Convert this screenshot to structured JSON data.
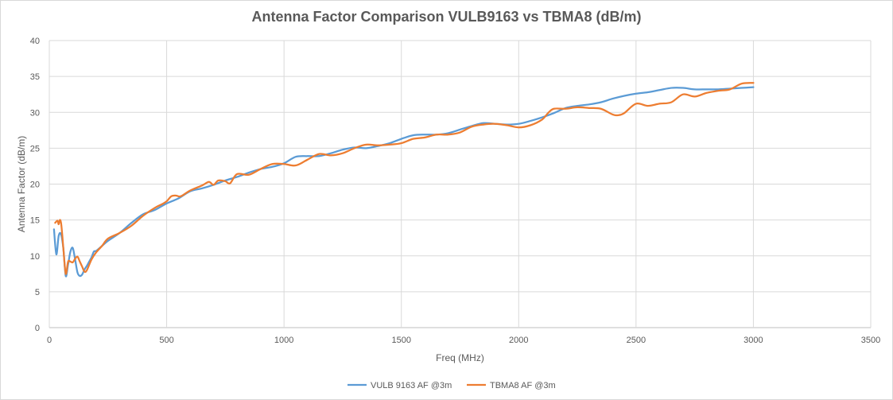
{
  "chart_data": {
    "type": "line",
    "title": "Antenna Factor Comparison VULB9163 vs TBMA8 (dB/m)",
    "xlabel": "Freq (MHz)",
    "ylabel": "Antenna Factor (dB/m)",
    "xlim": [
      0,
      3500
    ],
    "ylim": [
      0,
      40
    ],
    "xticks": [
      0,
      500,
      1000,
      1500,
      2000,
      2500,
      3000,
      3500
    ],
    "yticks": [
      0,
      5,
      10,
      15,
      20,
      25,
      30,
      35,
      40
    ],
    "grid": true,
    "legend_position": "bottom",
    "series": [
      {
        "name": "VULB 9163 AF @3m",
        "color": "#5b9bd5",
        "x": [
          20,
          30,
          40,
          50,
          60,
          70,
          80,
          90,
          100,
          110,
          120,
          130,
          140,
          150,
          160,
          170,
          180,
          190,
          200,
          225,
          250,
          300,
          350,
          400,
          450,
          500,
          550,
          600,
          650,
          700,
          750,
          800,
          850,
          900,
          950,
          1000,
          1050,
          1100,
          1150,
          1200,
          1250,
          1300,
          1350,
          1400,
          1450,
          1500,
          1550,
          1600,
          1650,
          1700,
          1750,
          1800,
          1850,
          1900,
          1950,
          2000,
          2050,
          2100,
          2150,
          2200,
          2250,
          2300,
          2350,
          2400,
          2450,
          2500,
          2550,
          2600,
          2650,
          2700,
          2750,
          2800,
          2850,
          2900,
          2950,
          3000
        ],
        "y": [
          13.7,
          10.2,
          12.8,
          13.0,
          11.0,
          7.2,
          8.8,
          10.6,
          11.1,
          9.5,
          7.7,
          7.2,
          7.4,
          8.1,
          8.6,
          9.2,
          9.8,
          10.6,
          10.7,
          11.4,
          12.1,
          13.2,
          14.6,
          15.8,
          16.4,
          17.3,
          18.0,
          19.0,
          19.4,
          19.9,
          20.5,
          21.0,
          21.6,
          22.1,
          22.4,
          22.9,
          23.8,
          23.9,
          23.9,
          24.3,
          24.8,
          25.1,
          25.0,
          25.3,
          25.7,
          26.3,
          26.8,
          26.9,
          26.9,
          27.1,
          27.6,
          28.1,
          28.5,
          28.4,
          28.3,
          28.4,
          28.8,
          29.3,
          29.9,
          30.6,
          30.9,
          31.1,
          31.4,
          31.9,
          32.3,
          32.6,
          32.8,
          33.1,
          33.4,
          33.4,
          33.2,
          33.2,
          33.2,
          33.3,
          33.4,
          33.5
        ]
      },
      {
        "name": "TBMA8 AF @3m",
        "color": "#ed7d31",
        "x": [
          25,
          35,
          40,
          45,
          50,
          55,
          60,
          70,
          80,
          90,
          100,
          110,
          120,
          130,
          140,
          150,
          160,
          180,
          200,
          225,
          250,
          300,
          350,
          400,
          450,
          480,
          500,
          520,
          540,
          560,
          600,
          650,
          680,
          700,
          720,
          750,
          770,
          800,
          850,
          900,
          950,
          1000,
          1050,
          1100,
          1150,
          1200,
          1250,
          1300,
          1350,
          1400,
          1450,
          1500,
          1550,
          1600,
          1650,
          1700,
          1750,
          1800,
          1850,
          1900,
          1950,
          2000,
          2050,
          2100,
          2125,
          2150,
          2200,
          2250,
          2300,
          2350,
          2400,
          2425,
          2450,
          2500,
          2550,
          2600,
          2650,
          2700,
          2750,
          2800,
          2850,
          2900,
          2950,
          3000
        ],
        "y": [
          14.6,
          14.9,
          14.4,
          15.0,
          14.6,
          13.0,
          11.0,
          7.5,
          9.2,
          9.2,
          9.1,
          9.6,
          9.9,
          9.2,
          8.5,
          7.8,
          8.0,
          9.5,
          10.5,
          11.4,
          12.4,
          13.2,
          14.2,
          15.6,
          16.7,
          17.2,
          17.6,
          18.3,
          18.4,
          18.3,
          19.1,
          19.8,
          20.3,
          19.9,
          20.5,
          20.4,
          20.1,
          21.4,
          21.3,
          22.1,
          22.8,
          22.8,
          22.6,
          23.4,
          24.2,
          24.0,
          24.3,
          25.0,
          25.5,
          25.4,
          25.5,
          25.7,
          26.3,
          26.5,
          26.9,
          26.9,
          27.2,
          28.0,
          28.3,
          28.4,
          28.2,
          27.9,
          28.2,
          29.0,
          29.9,
          30.5,
          30.5,
          30.7,
          30.6,
          30.5,
          29.7,
          29.6,
          29.9,
          31.2,
          30.9,
          31.2,
          31.4,
          32.5,
          32.2,
          32.7,
          33.0,
          33.2,
          34.0,
          34.1
        ]
      }
    ]
  }
}
